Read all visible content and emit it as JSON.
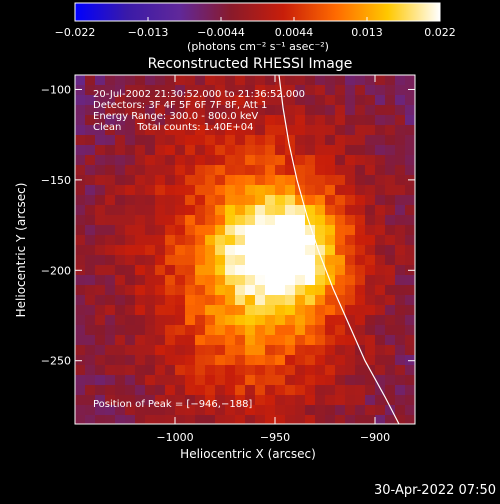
{
  "colorbar": {
    "ticks": [
      "−0.022",
      "−0.013",
      "−0.0044",
      "0.0044",
      "0.013",
      "0.022"
    ],
    "unit_label": "(photons cm⁻² s⁻¹ asec⁻²)",
    "range": [
      -0.022,
      0.022
    ]
  },
  "chart_data": {
    "type": "heatmap",
    "title": "Reconstructed RHESSI Image",
    "xlabel": "Heliocentric X (arcsec)",
    "ylabel": "Heliocentric Y (arcsec)",
    "xlim": [
      -1050,
      -880
    ],
    "ylim": [
      -285,
      -92
    ],
    "x_ticks": [
      -1000,
      -950,
      -900
    ],
    "x_tick_labels": [
      "−1000",
      "−950",
      "−900"
    ],
    "y_ticks": [
      -100,
      -150,
      -200,
      -250
    ],
    "y_tick_labels": [
      "−100",
      "−150",
      "−200",
      "−250"
    ],
    "info_lines": [
      "20-Jul-2002 21:30:52.000 to 21:36:52.000",
      "Detectors: 3F 4F 5F 6F 7F 8F, Att 1",
      "Energy Range: 300.0 - 800.0 keV",
      "Clean     Total counts: 1.40E+04"
    ],
    "peak_text": "Position of Peak = [−946,−188]",
    "peak": [
      -946,
      -188
    ],
    "limb_curve": [
      [
        -948,
        -92
      ],
      [
        -946,
        -110
      ],
      [
        -943,
        -130
      ],
      [
        -939,
        -150
      ],
      [
        -934,
        -170
      ],
      [
        -928,
        -190
      ],
      [
        -921,
        -210
      ],
      [
        -913,
        -230
      ],
      [
        -905,
        -250
      ],
      [
        -895,
        -270
      ],
      [
        -888,
        -285
      ]
    ],
    "source_components": [
      {
        "x": -946,
        "y": -188,
        "sx": 20,
        "sy": 22,
        "amp": 0.022
      },
      {
        "x": -965,
        "y": -178,
        "sx": 45,
        "sy": 60,
        "amp": 0.012
      },
      {
        "x": -960,
        "y": -235,
        "sx": 35,
        "sy": 40,
        "amp": 0.008
      }
    ],
    "colormap": [
      "#0000ff",
      "#3a1aa8",
      "#60289a",
      "#8a1a2a",
      "#c81e0a",
      "#ff6a00",
      "#ffc800",
      "#ffffff"
    ]
  },
  "footer": {
    "timestamp": "30-Apr-2022 07:50"
  }
}
